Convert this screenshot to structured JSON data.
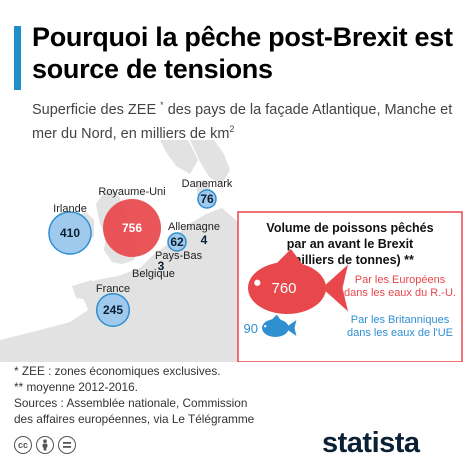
{
  "header": {
    "title": "Pourquoi la pêche post-Brexit est source de tensions",
    "subtitle": "Superficie des ZEE",
    "subtitle_mark": "*",
    "subtitle_rest": " des pays de la façade Atlantique, Manche et mer du Nord, en milliers de km",
    "subtitle_exp": "2",
    "accent_color": "#1f8ec9"
  },
  "chart_data": [
    {
      "type": "bubble-map",
      "title": "Superficie des ZEE * des pays de la façade Atlantique, Manche et mer du Nord, en milliers de km²",
      "unit": "milliers de km²",
      "points": [
        {
          "country": "Irlande",
          "value": 410,
          "label": "Irlande",
          "value_label": "410"
        },
        {
          "country": "Royaume-Uni",
          "value": 756,
          "label": "Royaume-Uni",
          "value_label": "756"
        },
        {
          "country": "Danemark",
          "value": 76,
          "label": "Danemark",
          "value_label": "76"
        },
        {
          "country": "Allemagne",
          "value": 62,
          "label": "Allemagne",
          "value_label": "62"
        },
        {
          "country": "Pays-Bas",
          "value": 4,
          "label": "Pays-Bas",
          "value_label": "4"
        },
        {
          "country": "Belgique",
          "value": 3,
          "label": "Belgique",
          "value_label": "3"
        },
        {
          "country": "France",
          "value": 245,
          "label": "France",
          "value_label": "245"
        }
      ]
    },
    {
      "type": "pictogram",
      "title": "Volume de poissons pêchés par an avant le Brexit (milliers de tonnes) **",
      "title_lines": [
        "Volume de poissons pêchés",
        "par an avant le Brexit",
        "(milliers de tonnes) **"
      ],
      "unit": "milliers de tonnes",
      "items": [
        {
          "value": 760,
          "value_label": "760",
          "label_lines": [
            "Par les Européens",
            "dans les eaux du R.-U."
          ],
          "color": "#e8474c"
        },
        {
          "value": 90,
          "value_label": "90",
          "label_lines": [
            "Par les Britanniques",
            "dans les eaux de l'UE"
          ],
          "color": "#2f8fd1"
        }
      ]
    }
  ],
  "colors": {
    "uk_bubble": "#e8474c",
    "eu_bubble": "#9fcaee",
    "bubble_border": "#2f8fd1",
    "land": "#e2e2e2",
    "sea": "#ffffff",
    "box_border": "#e8474c"
  },
  "notes": {
    "line1": "*  ZEE : zones économiques exclusives.",
    "line2": "** moyenne 2012-2016.",
    "line3": "Sources : Assemblée nationale, Commission",
    "line4": "des affaires européennes, via Le Télégramme"
  },
  "footer": {
    "logo": "statista",
    "icons": [
      "cc-icon",
      "attribution-icon",
      "equals-icon"
    ],
    "cc_text": "cc"
  }
}
